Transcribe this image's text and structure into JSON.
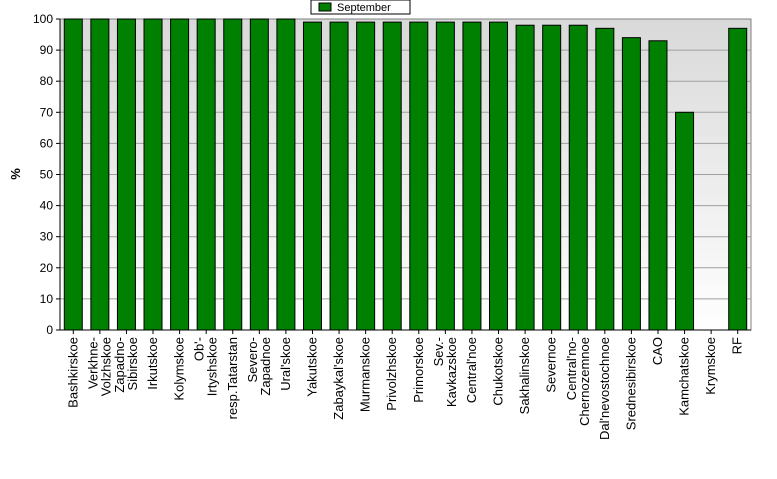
{
  "chart_data": {
    "type": "bar",
    "title": "",
    "xlabel": "",
    "ylabel": "%",
    "ylim": [
      0,
      100
    ],
    "yticks": [
      0,
      10,
      20,
      30,
      40,
      50,
      60,
      70,
      80,
      90,
      100
    ],
    "grid": true,
    "legend": {
      "position": "top-center",
      "entries": [
        "September"
      ]
    },
    "categories": [
      "Bashkirskoe",
      "Verkhne-Volzhskoe",
      "Zapadno-Sibirskoe",
      "Irkutskoe",
      "Kolymskoe",
      "Ob'-Irtyshskoe",
      "resp.Tatarstan",
      "Severo-Zapadnoe",
      "Ural'skoe",
      "Yakutskoe",
      "Zabaykal'skoe",
      "Murmanskoe",
      "Privolzhskoe",
      "Primorskoe",
      "Sev.-Kavkazskoe",
      "Central'noe",
      "Chukotskoe",
      "Sakhalinskoe",
      "Severnoe",
      "Central'no-Chernozemnoe",
      "Dal'nevostochnoe",
      "Srednesibirskoe",
      "CAO",
      "Kamchatskoe",
      "Krymskoe",
      "RF"
    ],
    "tick_labels": [
      [
        "Bashkirskoe"
      ],
      [
        "Verkhne-",
        "Volzhskoe"
      ],
      [
        "Zapadno-",
        "Sibirskoe"
      ],
      [
        "Irkutskoe"
      ],
      [
        "Kolymskoe"
      ],
      [
        "Ob'-",
        "Irtyshskoe"
      ],
      [
        "resp.Tatarstan"
      ],
      [
        "Severo-",
        "Zapadnoe"
      ],
      [
        "Ural'skoe"
      ],
      [
        "Yakutskoe"
      ],
      [
        "Zabaykal'skoe"
      ],
      [
        "Murmanskoe"
      ],
      [
        "Privolzhskoe"
      ],
      [
        "Primorskoe"
      ],
      [
        "Sev.-",
        "Kavkazskoe"
      ],
      [
        "Central'noe"
      ],
      [
        "Chukotskoe"
      ],
      [
        "Sakhalinskoe"
      ],
      [
        "Severnoe"
      ],
      [
        "Central'no-",
        "Chernozemnoe"
      ],
      [
        "Dal'nevostochnoe"
      ],
      [
        "Srednesibirskoe"
      ],
      [
        "CAO"
      ],
      [
        "Kamchatskoe"
      ],
      [
        "Krymskoe"
      ],
      [
        "RF"
      ]
    ],
    "series": [
      {
        "name": "September",
        "color": "#008000",
        "values": [
          100,
          100,
          100,
          100,
          100,
          100,
          100,
          100,
          100,
          99,
          99,
          99,
          99,
          99,
          99,
          99,
          99,
          98,
          98,
          98,
          97,
          94,
          93,
          70,
          null,
          97
        ]
      }
    ]
  }
}
